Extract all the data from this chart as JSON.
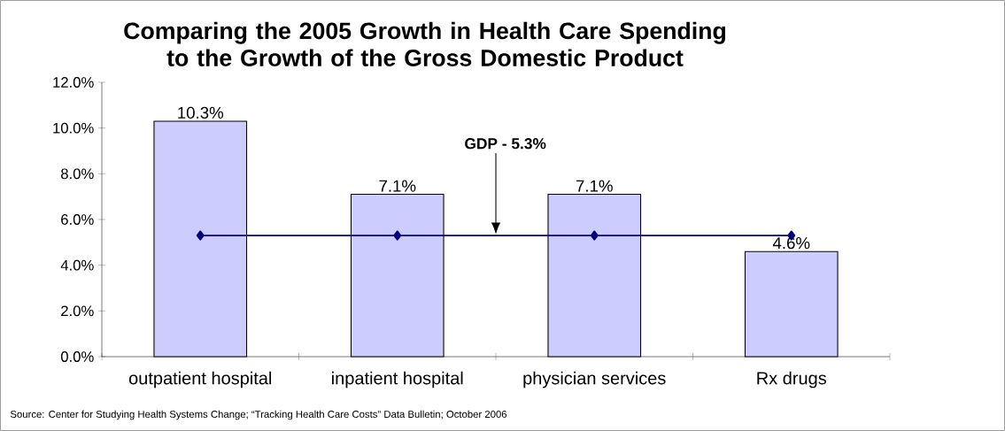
{
  "chart_data": {
    "type": "bar",
    "title": "Comparing the 2005 Growth in Health Care Spending to the Growth of the Gross Domestic Product",
    "categories": [
      "outpatient hospital",
      "inpatient hospital",
      "physician services",
      "Rx drugs"
    ],
    "series": [
      {
        "color": "#ccccff",
        "values": [
          10.3,
          7.1,
          7.1,
          4.6
        ],
        "value_labels": [
          "10.3%",
          "7.1%",
          "7.1%",
          "4.6%"
        ]
      },
      {
        "type": "line",
        "color": "#000080",
        "values": [
          5.3,
          5.3,
          5.3,
          5.3
        ],
        "marker": "diamond",
        "line_style": "solid"
      }
    ],
    "ylim": [
      0,
      12
    ],
    "yticks": [
      {
        "value": 0,
        "label": "0.0%"
      },
      {
        "value": 2,
        "label": "2.0%"
      },
      {
        "value": 4,
        "label": "4.0%"
      },
      {
        "value": 6,
        "label": "6.0%"
      },
      {
        "value": 8,
        "label": "8.0%"
      },
      {
        "value": 10,
        "label": "10.0%"
      },
      {
        "value": 12,
        "label": "12.0%"
      }
    ],
    "grid": false,
    "legend": false,
    "annotations": [
      "GDP - 5.3%",
      "Source: Center for Studying Health Systems Change; “Tracking Health Care Costs” Data Bulletin; October 2006"
    ]
  }
}
